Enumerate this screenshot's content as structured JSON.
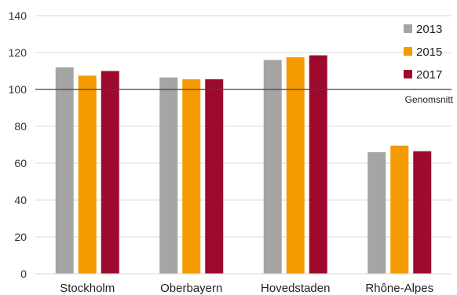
{
  "chart_data": {
    "type": "bar",
    "title": "",
    "xlabel": "",
    "ylabel": "",
    "categories": [
      "Stockholm",
      "Oberbayern",
      "Hovedstaden",
      "Rhône-Alpes"
    ],
    "series": [
      {
        "name": "2013",
        "color": "#a5a5a5",
        "values": [
          112,
          106.5,
          116,
          66
        ]
      },
      {
        "name": "2015",
        "color": "#f59a00",
        "values": [
          107.5,
          105.5,
          117.5,
          69.5
        ]
      },
      {
        "name": "2017",
        "color": "#9e0a2e",
        "values": [
          110,
          105.5,
          118.5,
          66.5
        ]
      }
    ],
    "ylim": [
      0,
      140
    ],
    "yticks": [
      0,
      20,
      40,
      60,
      80,
      100,
      120,
      140
    ],
    "grid": true,
    "legend_position": "top-right",
    "reference_line": {
      "value": 100,
      "label": "Genomsnitt"
    }
  }
}
